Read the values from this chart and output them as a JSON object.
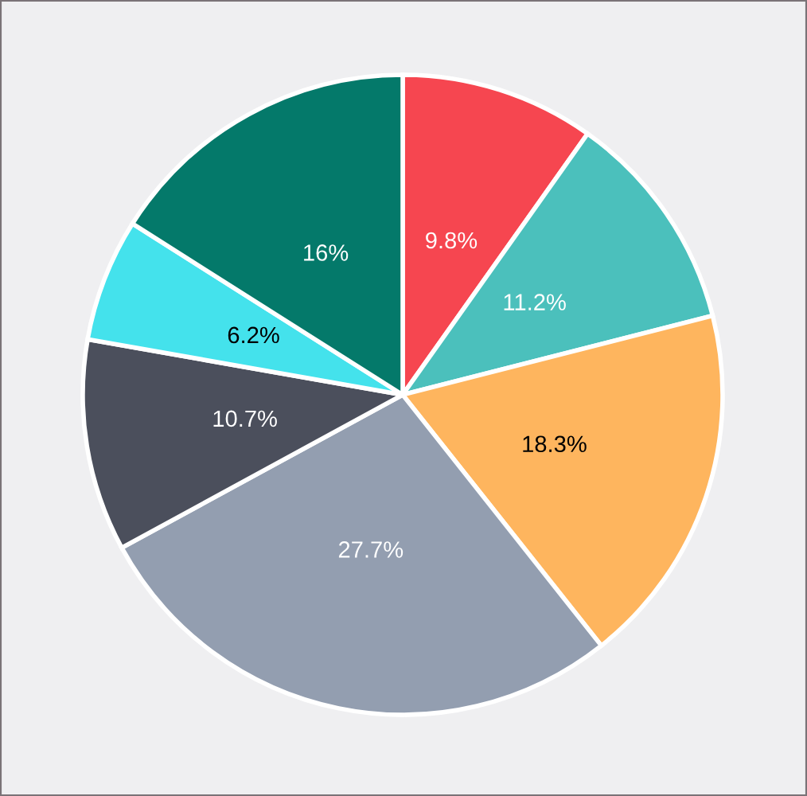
{
  "chart_data": {
    "type": "pie",
    "categories": [
      null,
      null,
      null,
      null,
      null,
      null,
      null
    ],
    "values": [
      9.8,
      11.2,
      18.3,
      27.7,
      10.7,
      6.2,
      16
    ],
    "colors": [
      "#f64650",
      "#4bc0bc",
      "#feb55e",
      "#939eb0",
      "#4b4f5c",
      "#44e2ec",
      "#04796a"
    ],
    "value_labels": [
      "9.8%",
      "11.2%",
      "18.3%",
      "27.7%",
      "10.7%",
      "6.2%",
      "16%"
    ]
  }
}
